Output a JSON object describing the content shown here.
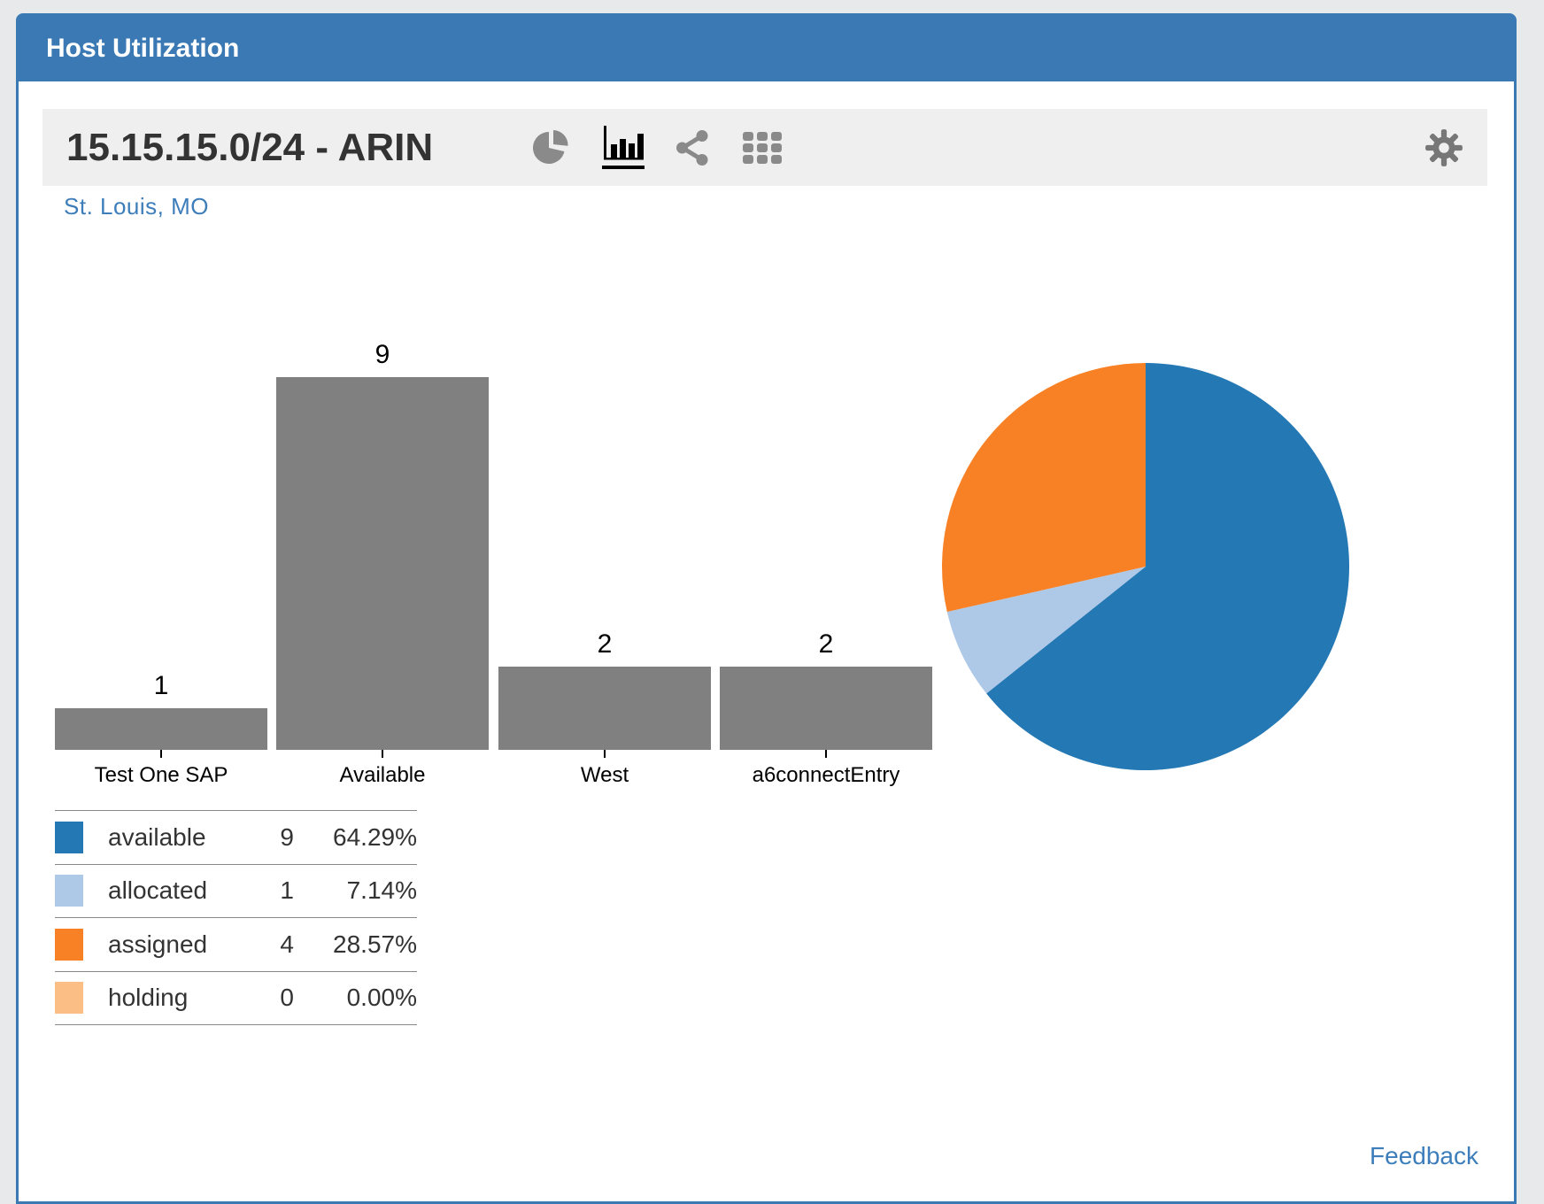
{
  "panel": {
    "title": "Host Utilization",
    "header_color": "#3a79b4"
  },
  "toolbar": {
    "title": "15.15.15.0/24 - ARIN",
    "icons": [
      {
        "name": "pie-chart-view",
        "active": false
      },
      {
        "name": "bar-chart-view",
        "active": true
      },
      {
        "name": "share",
        "active": false
      },
      {
        "name": "grid-view",
        "active": false
      }
    ],
    "settings_icon": "gear"
  },
  "subtitle": {
    "location": "St. Louis, MO"
  },
  "chart_data": [
    {
      "type": "bar",
      "categories": [
        "Test One SAP",
        "Available",
        "West",
        "a6connectEntry"
      ],
      "values": [
        1,
        9,
        2,
        2
      ],
      "bar_color": "#808080",
      "value_labels": [
        "1",
        "9",
        "2",
        "2"
      ],
      "ylim": [
        0,
        9.6
      ],
      "grid": false,
      "axes_shown": false
    },
    {
      "type": "pie",
      "labels": [
        "available",
        "allocated",
        "assigned",
        "holding"
      ],
      "values": [
        9,
        1,
        4,
        0
      ],
      "percents": [
        "64.29%",
        "7.14%",
        "28.57%",
        "0.00%"
      ],
      "colors": [
        "#2478b4",
        "#aec8e8",
        "#f98125",
        "#fbbf85"
      ],
      "start_angle": "top",
      "direction": "clockwise",
      "legend_position": "bottom-left"
    }
  ],
  "legend": {
    "rows": [
      {
        "label": "available",
        "count": "9",
        "percent": "64.29%",
        "color": "#2478b4"
      },
      {
        "label": "allocated",
        "count": "1",
        "percent": "7.14%",
        "color": "#aec8e8"
      },
      {
        "label": "assigned",
        "count": "4",
        "percent": "28.57%",
        "color": "#f98125"
      },
      {
        "label": "holding",
        "count": "0",
        "percent": "0.00%",
        "color": "#fbbf85"
      }
    ]
  },
  "footer": {
    "feedback_label": "Feedback",
    "link_color": "#3d7eba"
  }
}
